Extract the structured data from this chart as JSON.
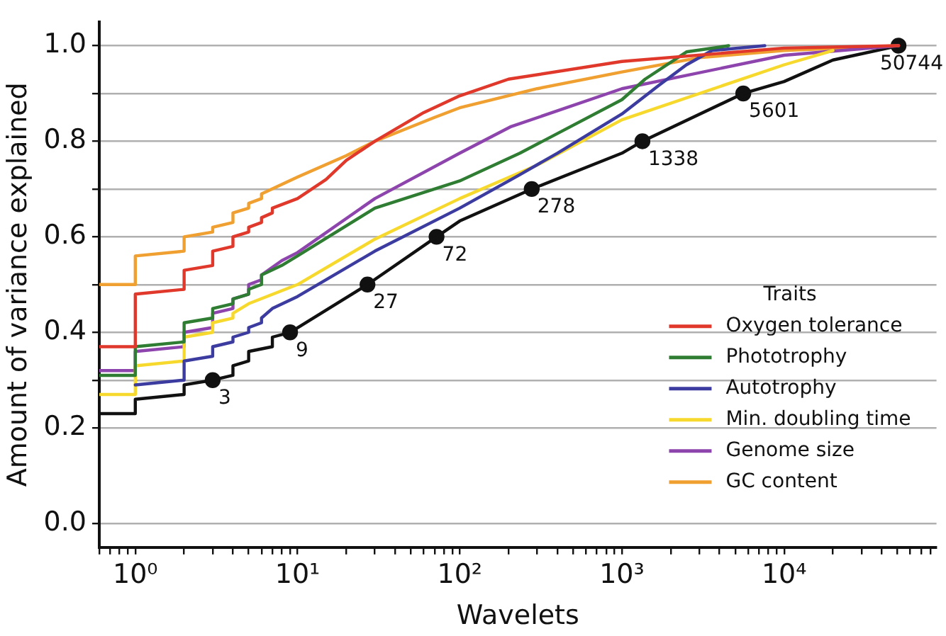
{
  "chart_data": {
    "type": "line",
    "xlabel": "Wavelets",
    "ylabel": "Amount of variance explained",
    "legend_title": "Traits",
    "legend": "bottom right",
    "grid": "y",
    "log": "x",
    "xlim": [
      0.6,
      87000
    ],
    "xticks": [
      {
        "value": 0.6,
        "label": null
      },
      {
        "value": 0.7,
        "label": null
      },
      {
        "value": 0.8,
        "label": null
      },
      {
        "value": 0.9,
        "label": null
      },
      {
        "value": 1,
        "label": "10⁰"
      },
      {
        "value": 2,
        "label": null
      },
      {
        "value": 3,
        "label": null
      },
      {
        "value": 4,
        "label": null
      },
      {
        "value": 5,
        "label": null
      },
      {
        "value": 6,
        "label": null
      },
      {
        "value": 7,
        "label": null
      },
      {
        "value": 8,
        "label": null
      },
      {
        "value": 9,
        "label": null
      },
      {
        "value": 10,
        "label": "10¹"
      },
      {
        "value": 20,
        "label": null
      },
      {
        "value": 30,
        "label": null
      },
      {
        "value": 40,
        "label": null
      },
      {
        "value": 50,
        "label": null
      },
      {
        "value": 60,
        "label": null
      },
      {
        "value": 70,
        "label": null
      },
      {
        "value": 80,
        "label": null
      },
      {
        "value": 90,
        "label": null
      },
      {
        "value": 100,
        "label": "10²"
      },
      {
        "value": 200,
        "label": null
      },
      {
        "value": 300,
        "label": null
      },
      {
        "value": 400,
        "label": null
      },
      {
        "value": 500,
        "label": null
      },
      {
        "value": 600,
        "label": null
      },
      {
        "value": 700,
        "label": null
      },
      {
        "value": 800,
        "label": null
      },
      {
        "value": 900,
        "label": null
      },
      {
        "value": 1000,
        "label": "10³"
      },
      {
        "value": 2000,
        "label": null
      },
      {
        "value": 3000,
        "label": null
      },
      {
        "value": 4000,
        "label": null
      },
      {
        "value": 5000,
        "label": null
      },
      {
        "value": 6000,
        "label": null
      },
      {
        "value": 7000,
        "label": null
      },
      {
        "value": 8000,
        "label": null
      },
      {
        "value": 9000,
        "label": null
      },
      {
        "value": 10000,
        "label": "10⁴"
      },
      {
        "value": 20000,
        "label": null
      },
      {
        "value": 30000,
        "label": null
      },
      {
        "value": 40000,
        "label": null
      },
      {
        "value": 50000,
        "label": null
      },
      {
        "value": 60000,
        "label": null
      },
      {
        "value": 70000,
        "label": null
      },
      {
        "value": 80000,
        "label": null
      }
    ],
    "ylim": [
      -0.05,
      1.05
    ],
    "yticks": [
      {
        "value": 0,
        "label": "0.0"
      },
      {
        "value": 0.2,
        "label": "0.2"
      },
      {
        "value": 0.3,
        "label": null
      },
      {
        "value": 0.4,
        "label": "0.4"
      },
      {
        "value": 0.5,
        "label": null
      },
      {
        "value": 0.6,
        "label": "0.6"
      },
      {
        "value": 0.7,
        "label": null
      },
      {
        "value": 0.8,
        "label": "0.8"
      },
      {
        "value": 0.9,
        "label": null
      },
      {
        "value": 1,
        "label": "1.0"
      }
    ],
    "series": [
      {
        "name": "Oxygen tolerance",
        "color": "#e0392b",
        "x": [
          0.6,
          1,
          1,
          2,
          2,
          3,
          3,
          4,
          4,
          5,
          5,
          6,
          6,
          7,
          7,
          10,
          15,
          20,
          30,
          60,
          100,
          200,
          1000,
          10000,
          50744
        ],
        "values": [
          0.37,
          0.37,
          0.48,
          0.49,
          0.53,
          0.54,
          0.57,
          0.58,
          0.6,
          0.61,
          0.62,
          0.63,
          0.64,
          0.65,
          0.66,
          0.68,
          0.72,
          0.76,
          0.8,
          0.86,
          0.895,
          0.93,
          0.967,
          0.995,
          1.0
        ]
      },
      {
        "name": "Phototrophy",
        "color": "#2e7d32",
        "x": [
          0.6,
          1,
          1,
          2,
          2,
          3,
          3,
          4,
          4,
          5,
          5,
          6,
          6,
          8,
          10,
          30,
          100,
          235,
          1000,
          1390,
          2500,
          4550
        ],
        "values": [
          0.31,
          0.31,
          0.37,
          0.38,
          0.42,
          0.43,
          0.45,
          0.46,
          0.47,
          0.48,
          0.49,
          0.5,
          0.52,
          0.54,
          0.56,
          0.66,
          0.717,
          0.775,
          0.887,
          0.93,
          0.987,
          1.0
        ]
      },
      {
        "name": "Autotrophy",
        "color": "#3c3ca0",
        "x": [
          1,
          2,
          2,
          3,
          3,
          4,
          4,
          5,
          5,
          6,
          6,
          7,
          10,
          30,
          100,
          235,
          400,
          1000,
          1690,
          2500,
          3600,
          7600
        ],
        "values": [
          0.29,
          0.3,
          0.34,
          0.35,
          0.37,
          0.38,
          0.39,
          0.4,
          0.41,
          0.42,
          0.43,
          0.45,
          0.475,
          0.57,
          0.66,
          0.73,
          0.775,
          0.857,
          0.917,
          0.96,
          0.99,
          1.0
        ]
      },
      {
        "name": "Min. doubling time",
        "color": "#f7d92e",
        "x": [
          0.6,
          1,
          1,
          2,
          2,
          3,
          3,
          4,
          4,
          5,
          10,
          30,
          100,
          300,
          1000,
          10000,
          20000
        ],
        "values": [
          0.27,
          0.27,
          0.33,
          0.34,
          0.39,
          0.4,
          0.42,
          0.43,
          0.44,
          0.46,
          0.5,
          0.595,
          0.68,
          0.75,
          0.845,
          0.96,
          0.99
        ]
      },
      {
        "name": "Genome size",
        "color": "#8e44ad",
        "x": [
          0.6,
          1,
          1,
          2,
          2,
          3,
          3,
          4,
          4,
          5,
          5,
          6,
          6,
          8,
          10,
          30,
          100,
          205,
          1000,
          10000,
          50744
        ],
        "values": [
          0.32,
          0.32,
          0.36,
          0.37,
          0.4,
          0.41,
          0.44,
          0.45,
          0.47,
          0.48,
          0.5,
          0.51,
          0.52,
          0.55,
          0.567,
          0.68,
          0.775,
          0.83,
          0.91,
          0.98,
          1.0
        ]
      },
      {
        "name": "GC content",
        "color": "#f0a030",
        "x": [
          0.6,
          1,
          1,
          2,
          2,
          3,
          3,
          4,
          4,
          5,
          5,
          6,
          6,
          10,
          20,
          30,
          70,
          100,
          300,
          1000,
          3000,
          10000,
          50744
        ],
        "values": [
          0.5,
          0.5,
          0.56,
          0.57,
          0.6,
          0.61,
          0.62,
          0.63,
          0.65,
          0.66,
          0.67,
          0.68,
          0.69,
          0.725,
          0.77,
          0.8,
          0.85,
          0.87,
          0.91,
          0.945,
          0.975,
          0.99,
          1.0
        ]
      },
      {
        "color": "#111111",
        "x": [
          0.6,
          1,
          1,
          2,
          2,
          3,
          4,
          4,
          5,
          5,
          7,
          7,
          9,
          27,
          72,
          100,
          278,
          1000,
          1338,
          5601,
          10000,
          20000,
          50744
        ],
        "values": [
          0.23,
          0.23,
          0.26,
          0.27,
          0.29,
          0.3,
          0.31,
          0.33,
          0.34,
          0.36,
          0.37,
          0.39,
          0.4,
          0.5,
          0.6,
          0.633,
          0.7,
          0.775,
          0.8,
          0.9,
          0.925,
          0.97,
          1.0
        ]
      },
      {
        "type": "scatter",
        "marker": "circle",
        "color": "#111111",
        "x": [
          3,
          9,
          27,
          72,
          278,
          1338,
          5601,
          50744
        ],
        "values": [
          0.3,
          0.4,
          0.5,
          0.6,
          0.7,
          0.8,
          0.9,
          1.0
        ]
      }
    ],
    "annotations": [
      {
        "text": "3",
        "x": 3,
        "y": 0.3
      },
      {
        "text": "9",
        "x": 9,
        "y": 0.4
      },
      {
        "text": "27",
        "x": 27,
        "y": 0.5
      },
      {
        "text": "72",
        "x": 72,
        "y": 0.6
      },
      {
        "text": "278",
        "x": 278,
        "y": 0.7
      },
      {
        "text": "1338",
        "x": 1338,
        "y": 0.8
      },
      {
        "text": "5601",
        "x": 5601,
        "y": 0.9
      },
      {
        "text": "50744",
        "x": 50744,
        "y": 1.0
      }
    ]
  }
}
